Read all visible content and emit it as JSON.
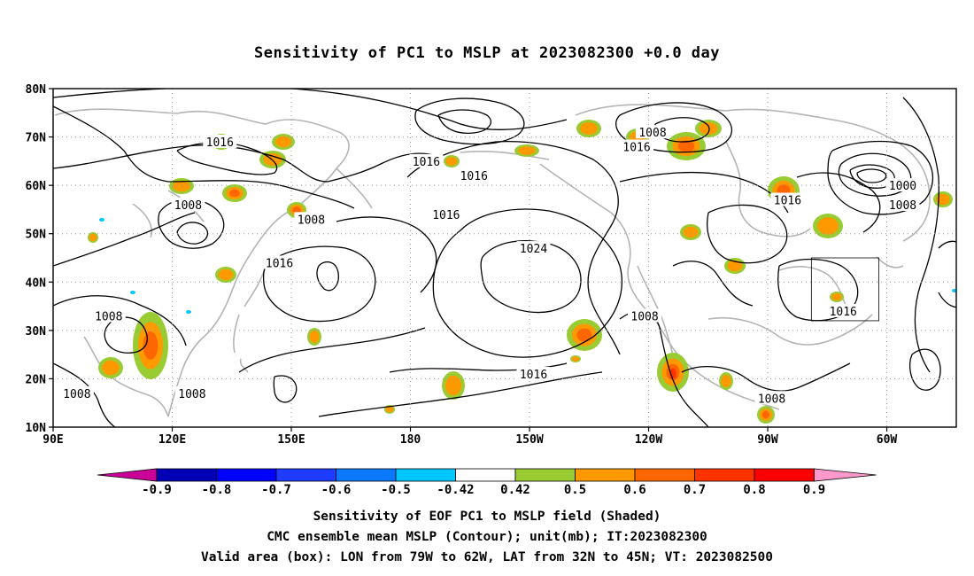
{
  "title": "Sensitivity of PC1 to MSLP at 2023082300 +0.0 day",
  "map": {
    "lat_labels": [
      "80N",
      "70N",
      "60N",
      "50N",
      "40N",
      "30N",
      "20N",
      "10N"
    ],
    "lon_labels": [
      "90E",
      "120E",
      "150E",
      "180",
      "150W",
      "120W",
      "90W",
      "60W"
    ],
    "contour_labels": [
      {
        "text": "1016",
        "lon": 132,
        "lat": 69
      },
      {
        "text": "1008",
        "lon": -119,
        "lat": 71
      },
      {
        "text": "1016",
        "lon": -176,
        "lat": 65
      },
      {
        "text": "1016",
        "lon": -164,
        "lat": 62
      },
      {
        "text": "1016",
        "lon": -123,
        "lat": 68
      },
      {
        "text": "1000",
        "lon": -56,
        "lat": 60
      },
      {
        "text": "1008",
        "lon": -56,
        "lat": 56
      },
      {
        "text": "1008",
        "lon": 124,
        "lat": 56
      },
      {
        "text": "1008",
        "lon": 155,
        "lat": 53
      },
      {
        "text": "1016",
        "lon": -171,
        "lat": 54
      },
      {
        "text": "1016",
        "lon": -85,
        "lat": 57
      },
      {
        "text": "1024",
        "lon": -149,
        "lat": 47
      },
      {
        "text": "1016",
        "lon": 147,
        "lat": 44
      },
      {
        "text": "1008",
        "lon": 104,
        "lat": 33
      },
      {
        "text": "1008",
        "lon": -121,
        "lat": 33
      },
      {
        "text": "1016",
        "lon": -71,
        "lat": 34
      },
      {
        "text": "1016",
        "lon": -149,
        "lat": 21
      },
      {
        "text": "1008",
        "lon": 96,
        "lat": 17
      },
      {
        "text": "1008",
        "lon": 125,
        "lat": 17
      },
      {
        "text": "1008",
        "lon": -89,
        "lat": 16
      }
    ],
    "valid_box": {
      "lon_from": -79,
      "lon_to": -62,
      "lat_from": 32,
      "lat_to": 45
    }
  },
  "colorbar": {
    "labels": [
      "-0.9",
      "-0.8",
      "-0.7",
      "-0.6",
      "-0.5",
      "-0.42",
      "0.42",
      "0.5",
      "0.6",
      "0.7",
      "0.8",
      "0.9"
    ],
    "colors": [
      "#cc0099",
      "#0000b4",
      "#0000ff",
      "#1e3cff",
      "#0a78ff",
      "#00c8ff",
      "#ffffff",
      "#99cc33",
      "#ff9900",
      "#ff6600",
      "#ff3300",
      "#ff0000",
      "#ff99cc"
    ]
  },
  "captions": {
    "line1": "Sensitivity of EOF PC1 to MSLP field (Shaded)",
    "line2": "CMC ensemble mean MSLP (Contour); unit(mb); IT:2023082300",
    "line3": "Valid area (box): LON from 79W to 62W, LAT from 32N to 45N; VT: 2023082500"
  }
}
